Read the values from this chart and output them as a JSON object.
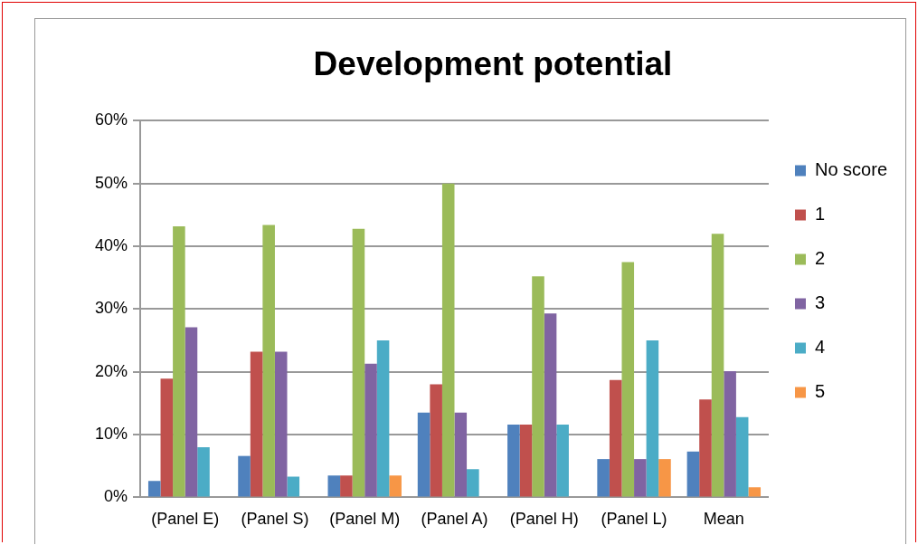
{
  "chart_data": {
    "type": "bar",
    "title": "Development potential",
    "categories": [
      "(Panel E)",
      "(Panel S)",
      "(Panel M)",
      "(Panel A)",
      "(Panel H)",
      "(Panel L)",
      "Mean"
    ],
    "series": [
      {
        "name": "No score",
        "color": "#4f81bd",
        "values": [
          2.6,
          6.6,
          3.5,
          13.5,
          11.6,
          6.1,
          7.3
        ]
      },
      {
        "name": "1",
        "color": "#c0504d",
        "values": [
          18.9,
          23.2,
          3.5,
          18.0,
          11.6,
          18.7,
          15.6
        ]
      },
      {
        "name": "2",
        "color": "#9bbb59",
        "values": [
          43.2,
          43.4,
          42.8,
          50.0,
          35.2,
          37.5,
          42.0
        ]
      },
      {
        "name": "3",
        "color": "#8064a2",
        "values": [
          27.1,
          23.2,
          21.3,
          13.5,
          29.3,
          6.1,
          20.1
        ]
      },
      {
        "name": "4",
        "color": "#4bacc6",
        "values": [
          8.0,
          3.3,
          25.0,
          4.5,
          11.6,
          25.0,
          12.8
        ]
      },
      {
        "name": "5",
        "color": "#f79646",
        "values": [
          0,
          0,
          3.5,
          0,
          0,
          6.1,
          1.6
        ]
      }
    ],
    "ylim": [
      0,
      60
    ],
    "yticks": [
      {
        "value": 0,
        "label": "0%"
      },
      {
        "value": 10,
        "label": "10%"
      },
      {
        "value": 20,
        "label": "20%"
      },
      {
        "value": 30,
        "label": "30%"
      },
      {
        "value": 40,
        "label": "40%"
      },
      {
        "value": 50,
        "label": "50%"
      },
      {
        "value": 60,
        "label": "60%"
      }
    ],
    "grid": "y",
    "legend": "right"
  }
}
